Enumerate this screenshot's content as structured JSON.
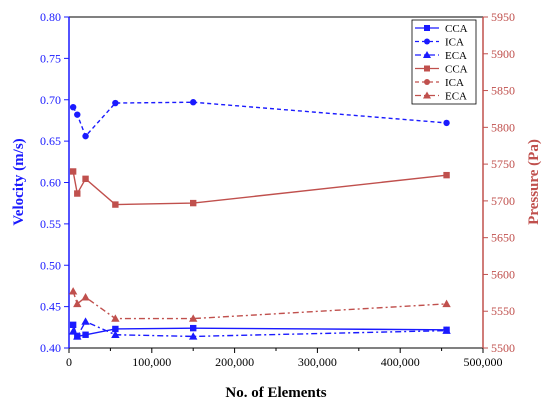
{
  "chart_data": {
    "type": "line",
    "x_axis": {
      "label": "No. of Elements",
      "range": [
        0,
        500000
      ],
      "ticks": [
        0,
        100000,
        200000,
        300000,
        400000,
        500000
      ],
      "tick_labels": [
        "0",
        "100,000",
        "200,000",
        "300,000",
        "400,000",
        "500,000"
      ]
    },
    "left_axis": {
      "label": "Velocity (m/s)",
      "range": [
        0.4,
        0.8
      ],
      "ticks": [
        0.4,
        0.45,
        0.5,
        0.55,
        0.6,
        0.65,
        0.7,
        0.75,
        0.8
      ],
      "tick_labels": [
        "0.40",
        "0.45",
        "0.50",
        "0.55",
        "0.60",
        "0.65",
        "0.70",
        "0.75",
        "0.80"
      ],
      "color": "#1a1aff"
    },
    "right_axis": {
      "label": "Pressure (Pa)",
      "range": [
        5500,
        5950
      ],
      "ticks": [
        5500,
        5550,
        5600,
        5650,
        5700,
        5750,
        5800,
        5850,
        5900,
        5950
      ],
      "tick_labels": [
        "5500",
        "5550",
        "5600",
        "5650",
        "5700",
        "5750",
        "5800",
        "5850",
        "5900",
        "5950"
      ],
      "color": "#c0504d"
    },
    "legend_position": "top-right",
    "grid": false,
    "series": [
      {
        "name": "CCA",
        "axis": "left",
        "color": "#1a1aff",
        "marker": "square",
        "dash": "solid",
        "x": [
          5000,
          10000,
          20000,
          56000,
          150000,
          456000
        ],
        "y": [
          0.428,
          0.414,
          0.416,
          0.423,
          0.424,
          0.422
        ]
      },
      {
        "name": "ICA",
        "axis": "left",
        "color": "#1a1aff",
        "marker": "circle",
        "dash": "dash",
        "x": [
          5000,
          10000,
          20000,
          56000,
          150000,
          456000
        ],
        "y": [
          0.691,
          0.682,
          0.656,
          0.696,
          0.697,
          0.672
        ]
      },
      {
        "name": "ECA",
        "axis": "left",
        "color": "#1a1aff",
        "marker": "triangle",
        "dash": "dashdot",
        "x": [
          5000,
          10000,
          20000,
          56000,
          150000,
          456000
        ],
        "y": [
          0.42,
          0.414,
          0.432,
          0.416,
          0.414,
          0.421
        ]
      },
      {
        "name": "CCA",
        "axis": "right",
        "color": "#c0504d",
        "marker": "square",
        "dash": "solid",
        "x": [
          5000,
          10000,
          20000,
          56000,
          150000,
          456000
        ],
        "y": [
          5740,
          5710,
          5730,
          5695,
          5697,
          5735
        ]
      },
      {
        "name": "ICA",
        "axis": "right",
        "color": "#c0504d",
        "marker": "circle",
        "dash": "dash",
        "x": [],
        "y": []
      },
      {
        "name": "ECA",
        "axis": "right",
        "color": "#c0504d",
        "marker": "triangle",
        "dash": "dashdot",
        "x": [
          5000,
          10000,
          20000,
          56000,
          150000,
          456000
        ],
        "y": [
          5577,
          5560,
          5569,
          5540,
          5540,
          5560
        ]
      }
    ]
  }
}
